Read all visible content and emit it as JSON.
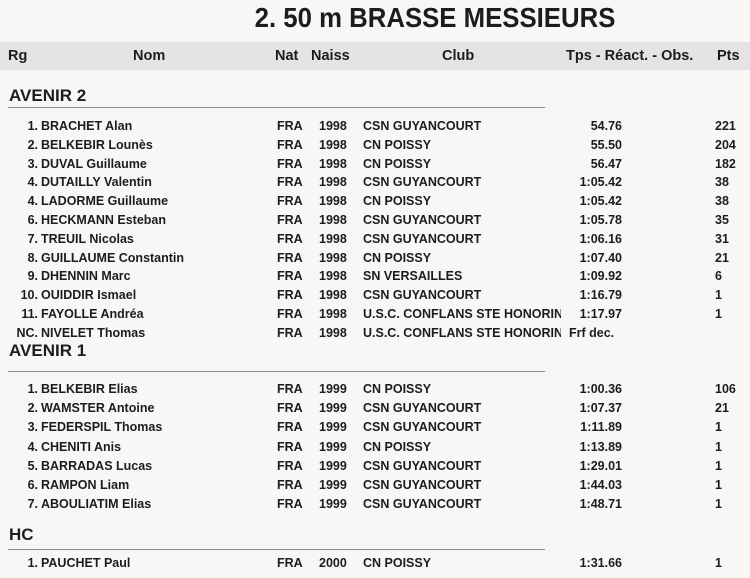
{
  "title": "2.  50 m BRASSE MESSIEURS",
  "header": {
    "rank": "Rg",
    "name": "Nom",
    "nat": "Nat",
    "birth": "Naiss",
    "club": "Club",
    "time": "Tps - Réact. - Obs.",
    "points": "Pts"
  },
  "sections": [
    {
      "name": "AVENIR 2",
      "rows": [
        {
          "rank": "1.",
          "name": "BRACHET Alan",
          "nat": "FRA",
          "birth": "1998",
          "club": "CSN GUYANCOURT",
          "time": "54.76",
          "points": "221"
        },
        {
          "rank": "2.",
          "name": "BELKEBIR Lounès",
          "nat": "FRA",
          "birth": "1998",
          "club": "CN POISSY",
          "time": "55.50",
          "points": "204"
        },
        {
          "rank": "3.",
          "name": "DUVAL Guillaume",
          "nat": "FRA",
          "birth": "1998",
          "club": "CN POISSY",
          "time": "56.47",
          "points": "182"
        },
        {
          "rank": "4.",
          "name": "DUTAILLY Valentin",
          "nat": "FRA",
          "birth": "1998",
          "club": "CSN GUYANCOURT",
          "time": "1:05.42",
          "points": "38"
        },
        {
          "rank": "4.",
          "name": "LADORME Guillaume",
          "nat": "FRA",
          "birth": "1998",
          "club": "CN POISSY",
          "time": "1:05.42",
          "points": "38"
        },
        {
          "rank": "6.",
          "name": "HECKMANN Esteban",
          "nat": "FRA",
          "birth": "1998",
          "club": "CSN GUYANCOURT",
          "time": "1:05.78",
          "points": "35"
        },
        {
          "rank": "7.",
          "name": "TREUIL Nicolas",
          "nat": "FRA",
          "birth": "1998",
          "club": "CSN GUYANCOURT",
          "time": "1:06.16",
          "points": "31"
        },
        {
          "rank": "8.",
          "name": "GUILLAUME Constantin",
          "nat": "FRA",
          "birth": "1998",
          "club": "CN POISSY",
          "time": "1:07.40",
          "points": "21"
        },
        {
          "rank": "9.",
          "name": "DHENNIN Marc",
          "nat": "FRA",
          "birth": "1998",
          "club": "SN VERSAILLES",
          "time": "1:09.92",
          "points": "6"
        },
        {
          "rank": "10.",
          "name": "OUIDDIR Ismael",
          "nat": "FRA",
          "birth": "1998",
          "club": "CSN GUYANCOURT",
          "time": "1:16.79",
          "points": "1"
        },
        {
          "rank": "11.",
          "name": "FAYOLLE Andréa",
          "nat": "FRA",
          "birth": "1998",
          "club": "U.S.C. CONFLANS STE HONORINE",
          "time": "1:17.97",
          "points": "1"
        },
        {
          "rank": "NC.",
          "name": "NIVELET Thomas",
          "nat": "FRA",
          "birth": "1998",
          "club": "U.S.C. CONFLANS STE HONORINE",
          "time": "Frf dec.",
          "points": ""
        }
      ]
    },
    {
      "name": "AVENIR 1",
      "rows": [
        {
          "rank": "1.",
          "name": "BELKEBIR Elias",
          "nat": "FRA",
          "birth": "1999",
          "club": "CN POISSY",
          "time": "1:00.36",
          "points": "106"
        },
        {
          "rank": "2.",
          "name": "WAMSTER Antoine",
          "nat": "FRA",
          "birth": "1999",
          "club": "CSN GUYANCOURT",
          "time": "1:07.37",
          "points": "21"
        },
        {
          "rank": "3.",
          "name": "FEDERSPIL Thomas",
          "nat": "FRA",
          "birth": "1999",
          "club": "CSN GUYANCOURT",
          "time": "1:11.89",
          "points": "1"
        },
        {
          "rank": "4.",
          "name": "CHENITI Anis",
          "nat": "FRA",
          "birth": "1999",
          "club": "CN POISSY",
          "time": "1:13.89",
          "points": "1"
        },
        {
          "rank": "5.",
          "name": "BARRADAS Lucas",
          "nat": "FRA",
          "birth": "1999",
          "club": "CSN GUYANCOURT",
          "time": "1:29.01",
          "points": "1"
        },
        {
          "rank": "6.",
          "name": "RAMPON Liam",
          "nat": "FRA",
          "birth": "1999",
          "club": "CSN GUYANCOURT",
          "time": "1:44.03",
          "points": "1"
        },
        {
          "rank": "7.",
          "name": "ABOULIATIM Elias",
          "nat": "FRA",
          "birth": "1999",
          "club": "CSN GUYANCOURT",
          "time": "1:48.71",
          "points": "1"
        }
      ]
    },
    {
      "name": "HC",
      "rows": [
        {
          "rank": "1.",
          "name": "PAUCHET Paul",
          "nat": "FRA",
          "birth": "2000",
          "club": "CN POISSY",
          "time": "1:31.66",
          "points": "1"
        }
      ]
    }
  ]
}
